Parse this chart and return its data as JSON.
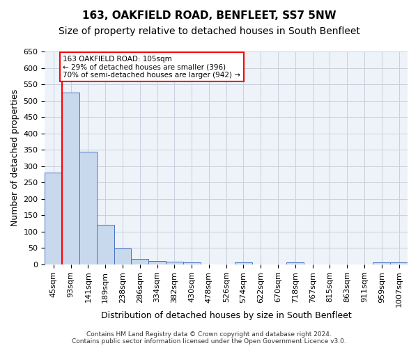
{
  "title": "163, OAKFIELD ROAD, BENFLEET, SS7 5NW",
  "subtitle": "Size of property relative to detached houses in South Benfleet",
  "xlabel": "Distribution of detached houses by size in South Benfleet",
  "ylabel": "Number of detached properties",
  "footnote": "Contains HM Land Registry data © Crown copyright and database right 2024.\nContains public sector information licensed under the Open Government Licence v3.0.",
  "bins": [
    "45sqm",
    "93sqm",
    "141sqm",
    "189sqm",
    "238sqm",
    "286sqm",
    "334sqm",
    "382sqm",
    "430sqm",
    "478sqm",
    "526sqm",
    "574sqm",
    "622sqm",
    "670sqm",
    "718sqm",
    "767sqm",
    "815sqm",
    "863sqm",
    "911sqm",
    "959sqm",
    "1007sqm"
  ],
  "values": [
    280,
    525,
    345,
    120,
    48,
    16,
    10,
    8,
    5,
    0,
    0,
    5,
    0,
    0,
    5,
    0,
    0,
    0,
    0,
    5,
    5
  ],
  "bar_color": "#c9d9ed",
  "bar_edge_color": "#4472c4",
  "vline_x_idx": 1,
  "vline_color": "red",
  "annotation_text": "163 OAKFIELD ROAD: 105sqm\n← 29% of detached houses are smaller (396)\n70% of semi-detached houses are larger (942) →",
  "annotation_box_color": "white",
  "annotation_box_edge_color": "red",
  "ylim": [
    0,
    650
  ],
  "yticks": [
    0,
    50,
    100,
    150,
    200,
    250,
    300,
    350,
    400,
    450,
    500,
    550,
    600,
    650
  ],
  "grid_color": "#c8d0de",
  "background_color": "#eef2f9",
  "title_fontsize": 11,
  "subtitle_fontsize": 10,
  "axis_fontsize": 9,
  "tick_fontsize": 8
}
